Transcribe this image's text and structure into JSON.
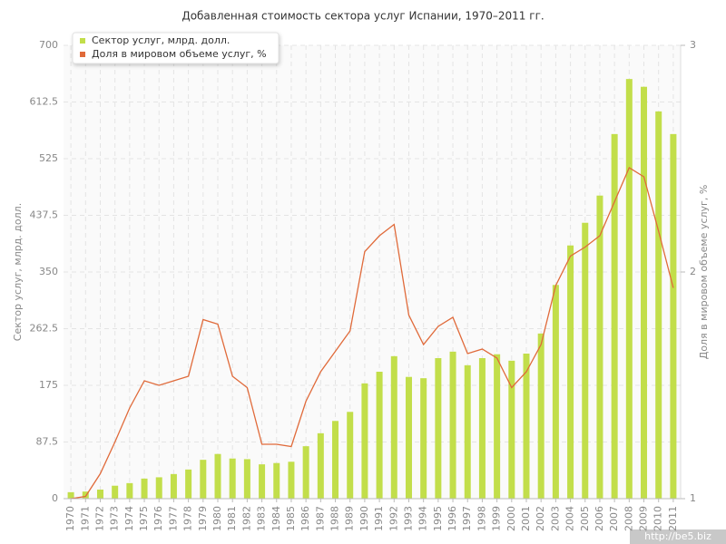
{
  "chart_data": {
    "type": "bar",
    "title": "Добавленная стоимость сектора услуг Испании, 1970–2011 гг.",
    "y_label": "Сектор услуг, млрд. долл.",
    "y2_label": "Доля в мировом объеме услуг, %",
    "categories": [
      "1970",
      "1971",
      "1972",
      "1973",
      "1974",
      "1975",
      "1976",
      "1977",
      "1978",
      "1979",
      "1980",
      "1981",
      "1982",
      "1983",
      "1984",
      "1985",
      "1986",
      "1987",
      "1988",
      "1989",
      "1990",
      "1991",
      "1992",
      "1993",
      "1994",
      "1995",
      "1996",
      "1997",
      "1998",
      "1999",
      "2000",
      "2001",
      "2002",
      "2003",
      "2004",
      "2005",
      "2006",
      "2007",
      "2008",
      "2009",
      "2010",
      "2011"
    ],
    "series": [
      {
        "name": "Сектор услуг, млрд. долл.",
        "type": "bar",
        "color": "#c2de4a",
        "values": [
          10,
          11,
          14,
          20,
          24,
          31,
          33,
          38,
          45,
          60,
          69,
          62,
          61,
          53,
          55,
          57,
          81,
          101,
          120,
          134,
          178,
          196,
          220,
          188,
          186,
          217,
          227,
          206,
          217,
          223,
          213,
          224,
          255,
          330,
          391,
          426,
          468,
          563,
          648,
          636,
          598,
          563
        ]
      },
      {
        "name": "Доля в мировом объеме услуг, %",
        "type": "line",
        "axis": "y2",
        "color": "#e06a3a",
        "values": [
          1.0,
          1.01,
          1.11,
          1.25,
          1.4,
          1.52,
          1.5,
          1.52,
          1.54,
          1.79,
          1.77,
          1.54,
          1.49,
          1.24,
          1.24,
          1.23,
          1.43,
          1.56,
          1.65,
          1.74,
          2.09,
          2.16,
          2.21,
          1.81,
          1.68,
          1.76,
          1.8,
          1.64,
          1.66,
          1.62,
          1.49,
          1.56,
          1.68,
          1.94,
          2.07,
          2.11,
          2.16,
          2.31,
          2.46,
          2.42,
          2.18,
          1.93
        ]
      }
    ],
    "ylim": [
      0,
      700
    ],
    "yticks": [
      0,
      87.5,
      175,
      262.5,
      350,
      437.5,
      525,
      612.5,
      700
    ],
    "y2lim": [
      1,
      3
    ],
    "y2ticks": [
      1,
      2,
      3
    ],
    "grid": true,
    "legend": "top-left"
  },
  "watermark": "http://be5.biz"
}
